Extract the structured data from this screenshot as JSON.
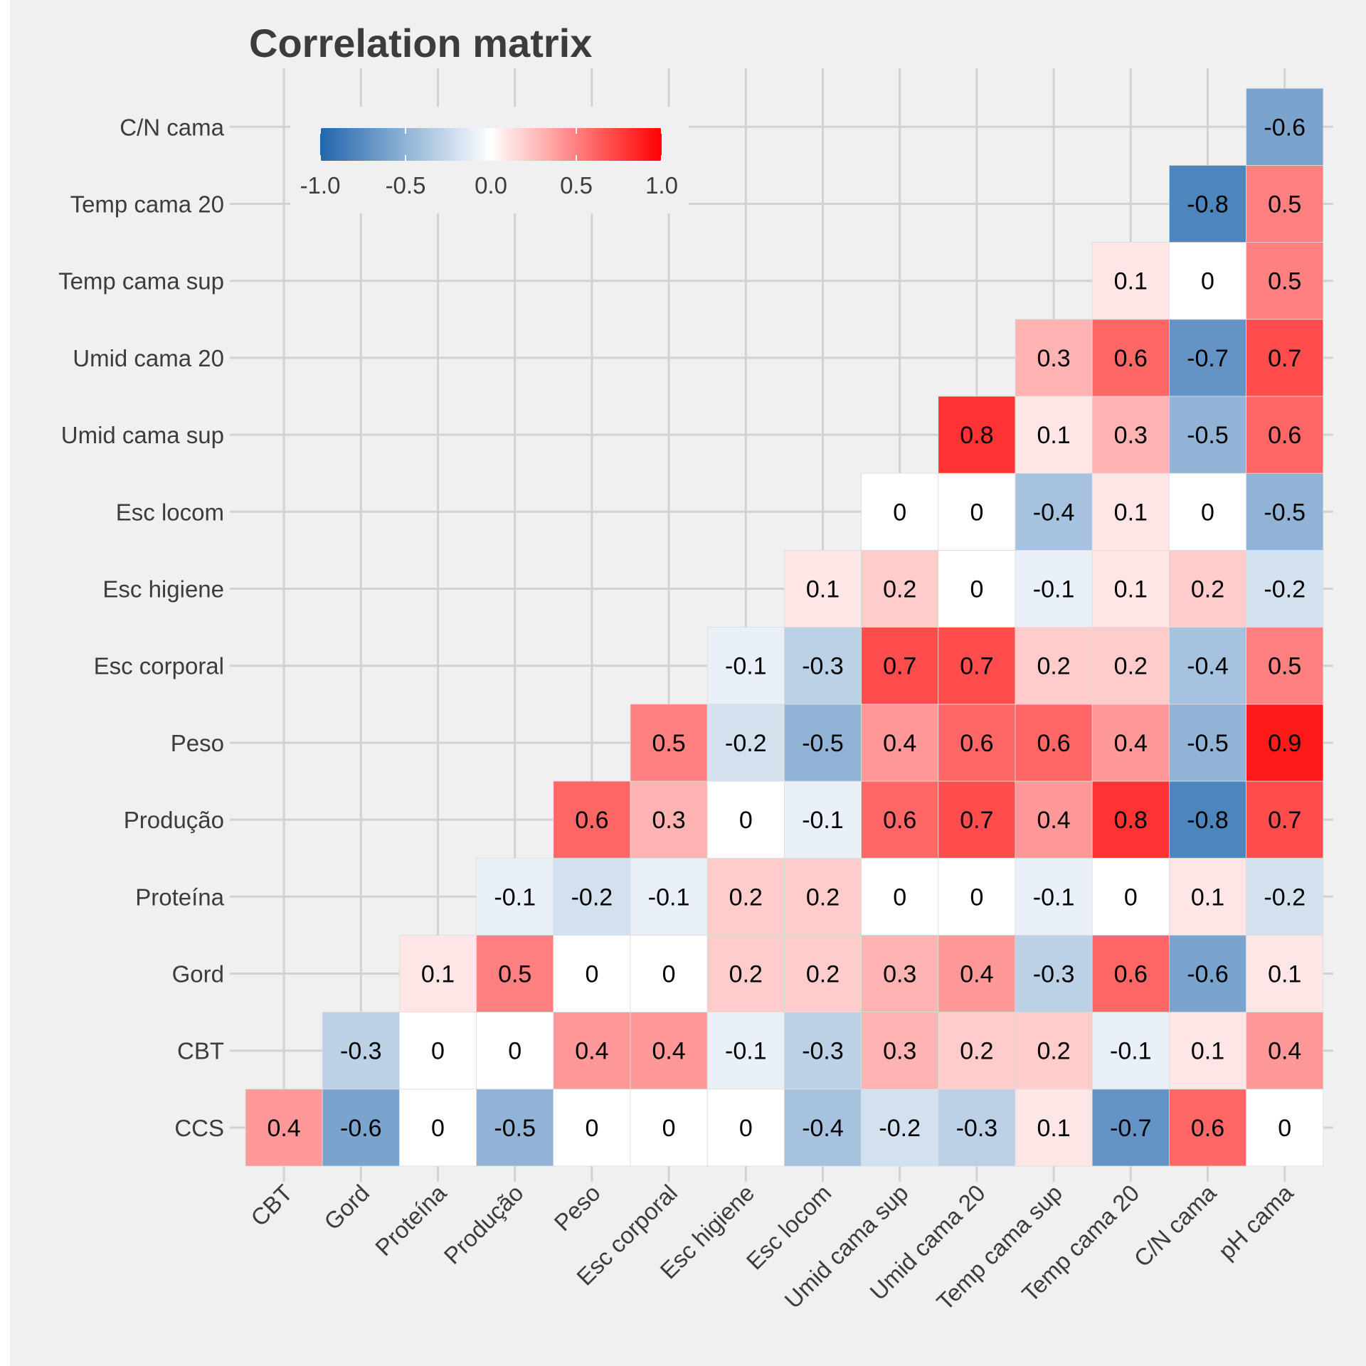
{
  "chart_data": {
    "type": "heatmap",
    "title": "Correlation matrix",
    "x_categories": [
      "CBT",
      "Gord",
      "Proteína",
      "Produção",
      "Peso",
      "Esc corporal",
      "Esc higiene",
      "Esc locom",
      "Umid cama sup",
      "Umid cama 20",
      "Temp cama sup",
      "Temp cama 20",
      "C/N cama",
      "pH cama"
    ],
    "y_categories": [
      "CCS",
      "CBT",
      "Gord",
      "Proteína",
      "Produção",
      "Peso",
      "Esc corporal",
      "Esc higiene",
      "Esc locom",
      "Umid cama sup",
      "Umid cama 20",
      "Temp cama sup",
      "Temp cama 20",
      "C/N cama"
    ],
    "values": [
      [
        0.4,
        -0.6,
        0,
        -0.5,
        0,
        0,
        0,
        -0.4,
        -0.2,
        -0.3,
        0.1,
        -0.7,
        0.6,
        0
      ],
      [
        null,
        -0.3,
        0,
        0,
        0.4,
        0.4,
        -0.1,
        -0.3,
        0.3,
        0.2,
        0.2,
        -0.1,
        0.1,
        0.4
      ],
      [
        null,
        null,
        0.1,
        0.5,
        0,
        0,
        0.2,
        0.2,
        0.3,
        0.4,
        -0.3,
        0.6,
        -0.6,
        0.1
      ],
      [
        null,
        null,
        null,
        -0.1,
        -0.2,
        -0.1,
        0.2,
        0.2,
        0,
        0,
        -0.1,
        0,
        0.1,
        -0.2
      ],
      [
        null,
        null,
        null,
        null,
        0.6,
        0.3,
        0,
        -0.1,
        0.6,
        0.7,
        0.4,
        0.8,
        -0.8,
        0.7
      ],
      [
        null,
        null,
        null,
        null,
        null,
        0.5,
        -0.2,
        -0.5,
        0.4,
        0.6,
        0.6,
        0.4,
        -0.5,
        0.9
      ],
      [
        null,
        null,
        null,
        null,
        null,
        null,
        -0.1,
        -0.3,
        0.7,
        0.7,
        0.2,
        0.2,
        -0.4,
        0.5
      ],
      [
        null,
        null,
        null,
        null,
        null,
        null,
        null,
        0.1,
        0.2,
        0,
        -0.1,
        0.1,
        0.2,
        -0.2
      ],
      [
        null,
        null,
        null,
        null,
        null,
        null,
        null,
        null,
        0,
        0,
        -0.4,
        0.1,
        0,
        -0.5
      ],
      [
        null,
        null,
        null,
        null,
        null,
        null,
        null,
        null,
        null,
        0.8,
        0.1,
        0.3,
        -0.5,
        0.6
      ],
      [
        null,
        null,
        null,
        null,
        null,
        null,
        null,
        null,
        null,
        null,
        0.3,
        0.6,
        -0.7,
        0.7
      ],
      [
        null,
        null,
        null,
        null,
        null,
        null,
        null,
        null,
        null,
        null,
        null,
        0.1,
        0,
        0.5
      ],
      [
        null,
        null,
        null,
        null,
        null,
        null,
        null,
        null,
        null,
        null,
        null,
        null,
        -0.8,
        0.5
      ],
      [
        null,
        null,
        null,
        null,
        null,
        null,
        null,
        null,
        null,
        null,
        null,
        null,
        null,
        -0.6
      ]
    ],
    "color_scale": {
      "min": -1,
      "max": 1,
      "low_color": "#2166ac",
      "mid_color": "#ffffff",
      "high_color": "#ff0000",
      "ticks": [
        "-1.0",
        "-0.5",
        "0.0",
        "0.5",
        "1.0"
      ]
    },
    "legend_placement": "top-left",
    "grid": true
  },
  "colors": {
    "background": "#f0f0f0",
    "gridline": "#d2d2d2",
    "text": "#3c3c3c",
    "cell_border": "#dcdcdc"
  }
}
